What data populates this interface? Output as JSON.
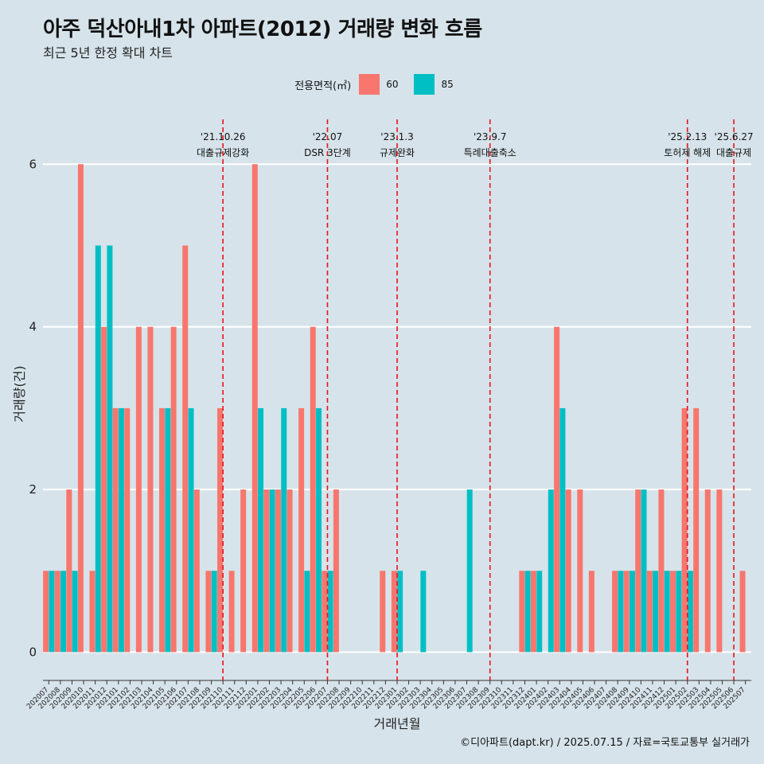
{
  "title": "아주 덕산아내1차 아파트(2012) 거래량 변화 흐름",
  "subtitle": "최근 5년 한정 확대 차트",
  "caption": "©디아파트(dapt.kr) / 2025.07.15 / 자료=국토교통부 실거래가",
  "legend": {
    "title": "전용면적(㎡)",
    "items": [
      {
        "label": "60",
        "color": "#f8766d"
      },
      {
        "label": "85",
        "color": "#00bfc4"
      }
    ]
  },
  "chart_data": {
    "type": "bar",
    "title": "아주 덕산아내1차 아파트(2012) 거래량 변화 흐름",
    "xlabel": "거래년월",
    "ylabel": "거래량(건)",
    "ylim": [
      -0.25,
      6.6
    ],
    "yticks": [
      0,
      2,
      4,
      6
    ],
    "categories": [
      "202007",
      "202008",
      "202009",
      "202010",
      "202011",
      "202012",
      "202101",
      "202102",
      "202103",
      "202104",
      "202105",
      "202106",
      "202107",
      "202108",
      "202109",
      "202110",
      "202111",
      "202112",
      "202201",
      "202202",
      "202203",
      "202204",
      "202205",
      "202206",
      "202207",
      "202208",
      "202209",
      "202210",
      "202211",
      "202212",
      "202301",
      "202302",
      "202303",
      "202304",
      "202305",
      "202306",
      "202307",
      "202308",
      "202309",
      "202310",
      "202311",
      "202312",
      "202401",
      "202402",
      "202403",
      "202404",
      "202405",
      "202406",
      "202407",
      "202408",
      "202409",
      "202410",
      "202411",
      "202412",
      "202501",
      "202502",
      "202503",
      "202504",
      "202505",
      "202506",
      "202507"
    ],
    "series": [
      {
        "name": "60",
        "color": "#f8766d",
        "values": [
          1,
          1,
          2,
          6,
          1,
          4,
          3,
          3,
          4,
          4,
          3,
          4,
          5,
          2,
          1,
          3,
          1,
          2,
          6,
          2,
          2,
          2,
          3,
          4,
          1,
          2,
          0,
          0,
          0,
          1,
          1,
          0,
          0,
          0,
          0,
          0,
          0,
          0,
          0,
          0,
          0,
          1,
          1,
          0,
          4,
          2,
          2,
          1,
          0,
          1,
          1,
          2,
          1,
          2,
          1,
          3,
          3,
          2,
          2,
          0,
          1
        ]
      },
      {
        "name": "85",
        "color": "#00bfc4",
        "values": [
          1,
          1,
          1,
          0,
          5,
          5,
          3,
          0,
          0,
          0,
          3,
          0,
          3,
          0,
          1,
          0,
          0,
          0,
          3,
          2,
          3,
          0,
          1,
          3,
          1,
          0,
          0,
          0,
          0,
          0,
          1,
          0,
          1,
          0,
          0,
          0,
          2,
          0,
          0,
          0,
          0,
          1,
          1,
          2,
          3,
          0,
          0,
          0,
          0,
          1,
          1,
          2,
          1,
          1,
          1,
          1,
          0,
          0,
          0,
          0,
          0
        ]
      }
    ],
    "events": [
      {
        "date": "'21.10.26",
        "label": "대출규제강화",
        "at": 15.0
      },
      {
        "date": "'22.07",
        "label": "DSR 3단계",
        "at": 24.0
      },
      {
        "date": "'23.1.3",
        "label": "규제완화",
        "at": 30.0
      },
      {
        "date": "'23.9.7",
        "label": "특례대출축소",
        "at": 38.0
      },
      {
        "date": "'25.2.13",
        "label": "토허제 해제",
        "at": 55.0
      },
      {
        "date": "'25.6.27",
        "label": "대출규제",
        "at": 59.0
      }
    ]
  }
}
